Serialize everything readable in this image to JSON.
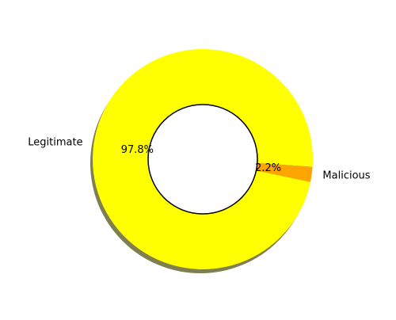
{
  "chart_data": {
    "type": "pie",
    "donut": true,
    "shadow": true,
    "title": "",
    "slices": [
      {
        "label": "Legitimate",
        "value": 97.8,
        "pct_label": "97.8%",
        "color": "#ffff00"
      },
      {
        "label": "Malicious",
        "value": 2.2,
        "pct_label": "2.2%",
        "color": "#ffa500"
      }
    ],
    "start_angle_deg": -4,
    "direction": "counterclockwise",
    "center_circle": {
      "fill": "#ffffff",
      "stroke": "#000000"
    },
    "shadow_color": "#7f7f50"
  }
}
